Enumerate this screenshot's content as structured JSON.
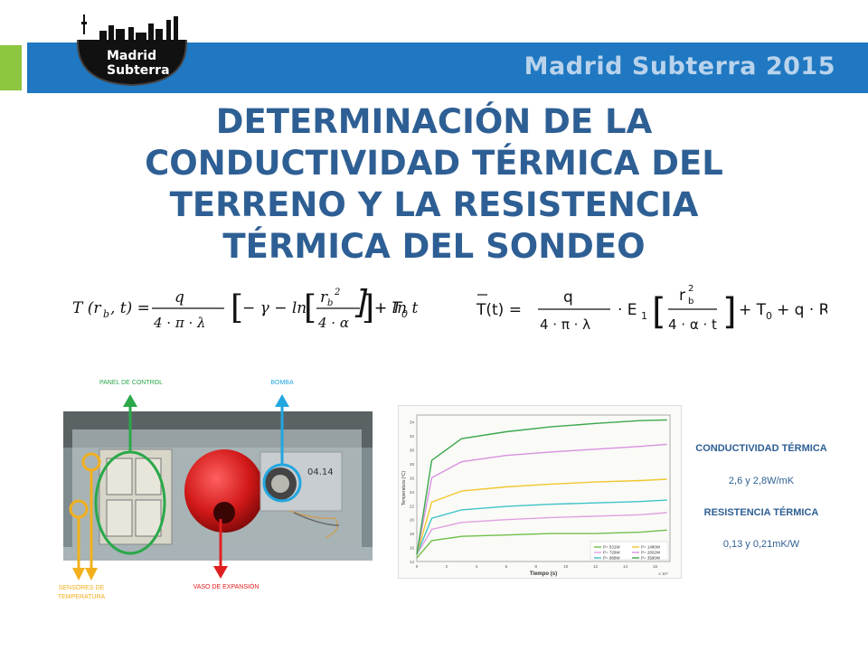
{
  "header": {
    "brand": "Madrid Subterra 2015",
    "logo_text_line1": "Madrid",
    "logo_text_line2": "Subterra"
  },
  "title": {
    "line1": "DETERMINACIÓN DE LA",
    "line2": "CONDUCTIVIDAD TÉRMICA DEL",
    "line3": "TERRENO Y LA RESISTENCIA",
    "line4": "TÉRMICA DEL SONDEO"
  },
  "photo_labels": {
    "panel": "PANEL DE CONTROL",
    "bomba": "BOMBA",
    "sensores_1": "SENSORES DE",
    "sensores_2": "TEMPERATURA",
    "vaso": "VASO DE EXPANSIÓN",
    "sticker": "04.14"
  },
  "results": {
    "cond_heading": "CONDUCTIVIDAD TÉRMICA",
    "cond_value": "2,6 y 2,8W/mK",
    "res_heading": "RESISTENCIA TÉRMICA",
    "res_value": "0,13 y 0,21mK/W"
  },
  "colors": {
    "title": "#2e5f94",
    "band": "#1f78c1",
    "green_tab": "#8dc63f",
    "panel_arrow": "#2aa84a",
    "bomba_arrow": "#22a6e0",
    "sensor_arrow": "#f2b01e",
    "vaso_arrow": "#e02020"
  },
  "chart_data": {
    "type": "line",
    "xlabel": "Tiempo (s)",
    "ylabel": "Temperatura (ºC)",
    "x_ticks": [
      "0",
      "2",
      "4",
      "6",
      "8",
      "10",
      "12",
      "14",
      "16"
    ],
    "x_exponent": "x 10⁴",
    "y_ticks": [
      "14",
      "16",
      "18",
      "20",
      "22",
      "24",
      "26",
      "28",
      "30",
      "32",
      "34"
    ],
    "xlim": [
      0,
      17
    ],
    "ylim": [
      14,
      35
    ],
    "legend_placement": "bottom-right",
    "series": [
      {
        "name": "P= 531W",
        "color": "#6fc04a",
        "values": [
          [
            0,
            14.5
          ],
          [
            1,
            17
          ],
          [
            3,
            17.6
          ],
          [
            6,
            17.8
          ],
          [
            9,
            18
          ],
          [
            12,
            18
          ],
          [
            15,
            18.2
          ],
          [
            16.8,
            18.5
          ]
        ]
      },
      {
        "name": "P= 729W",
        "color": "#e0a0e0",
        "values": [
          [
            0,
            15
          ],
          [
            1,
            18.6
          ],
          [
            3,
            19.6
          ],
          [
            6,
            20
          ],
          [
            9,
            20.3
          ],
          [
            12,
            20.5
          ],
          [
            15,
            20.7
          ],
          [
            16.8,
            21
          ]
        ]
      },
      {
        "name": "P= 989W",
        "color": "#3ec3c8",
        "values": [
          [
            0,
            15
          ],
          [
            1,
            20.2
          ],
          [
            3,
            21.4
          ],
          [
            6,
            21.9
          ],
          [
            9,
            22.2
          ],
          [
            12,
            22.4
          ],
          [
            15,
            22.6
          ],
          [
            16.8,
            22.8
          ]
        ]
      },
      {
        "name": "P= 1480W",
        "color": "#f0c830",
        "values": [
          [
            0,
            15
          ],
          [
            1,
            22.5
          ],
          [
            3,
            24.1
          ],
          [
            6,
            24.7
          ],
          [
            9,
            25.1
          ],
          [
            12,
            25.4
          ],
          [
            15,
            25.6
          ],
          [
            16.8,
            25.8
          ]
        ]
      },
      {
        "name": "P= 2602W",
        "color": "#d890e0",
        "values": [
          [
            0,
            15
          ],
          [
            1,
            26
          ],
          [
            3,
            28.3
          ],
          [
            6,
            29.2
          ],
          [
            9,
            29.7
          ],
          [
            12,
            30.1
          ],
          [
            15,
            30.5
          ],
          [
            16.8,
            30.8
          ]
        ]
      },
      {
        "name": "P= 3590W",
        "color": "#3aa84a",
        "values": [
          [
            0,
            15
          ],
          [
            1,
            28.5
          ],
          [
            3,
            31.6
          ],
          [
            6,
            32.6
          ],
          [
            9,
            33.3
          ],
          [
            12,
            33.8
          ],
          [
            15,
            34.2
          ],
          [
            16.8,
            34.3
          ]
        ]
      }
    ]
  }
}
